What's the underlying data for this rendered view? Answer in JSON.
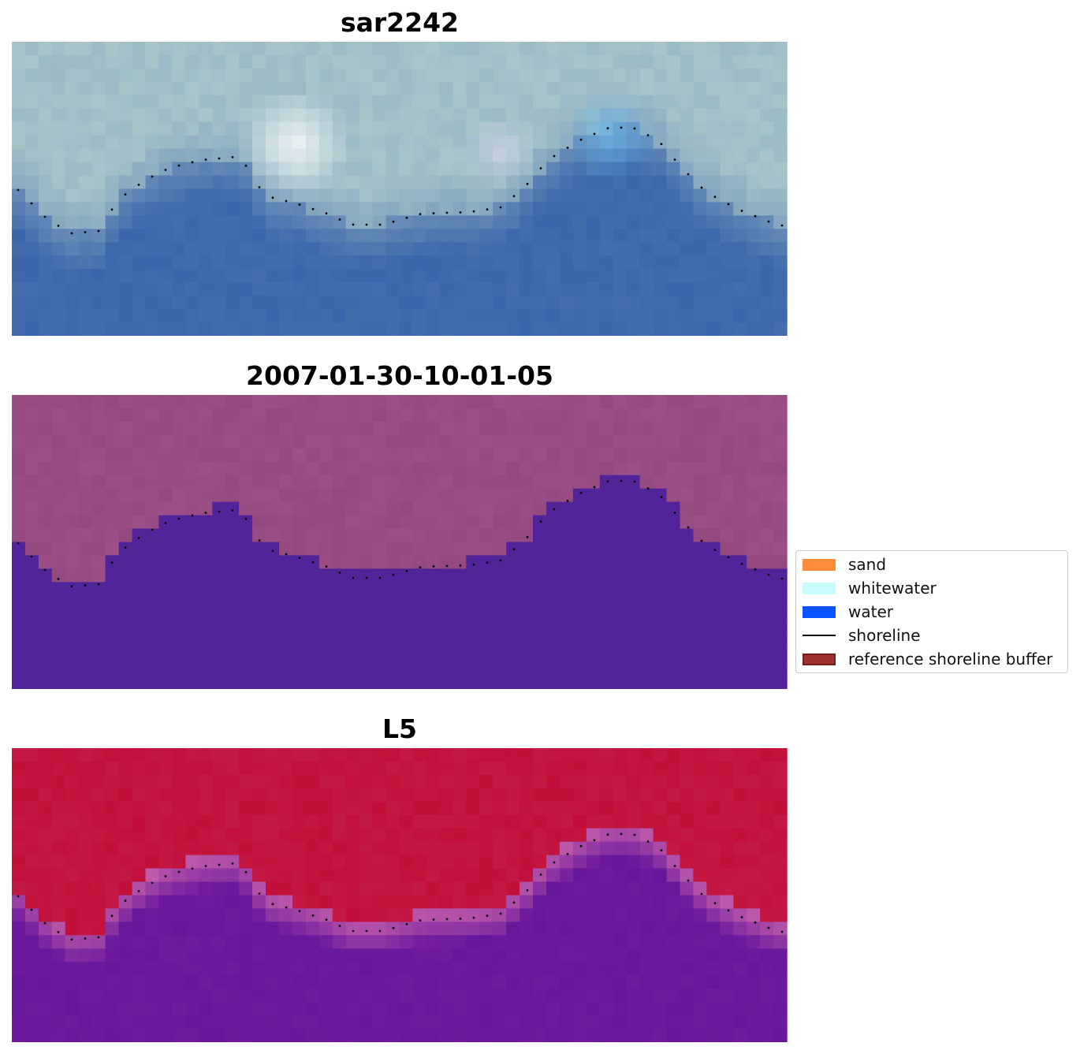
{
  "panels": [
    {
      "title": "sar2242",
      "kind": "rgb"
    },
    {
      "title": "2007-01-30-10-01-05",
      "kind": "classified"
    },
    {
      "title": "L5",
      "kind": "probability"
    }
  ],
  "legend": {
    "items": [
      {
        "label": "sand",
        "color": "#ff8c3a",
        "style": "patch"
      },
      {
        "label": "whitewater",
        "color": "#c8fbfb",
        "style": "patch"
      },
      {
        "label": "water",
        "color": "#0a55ff",
        "style": "patch"
      },
      {
        "label": "shoreline",
        "color": "#000000",
        "style": "line"
      },
      {
        "label": "reference shoreline buffer",
        "color": "#a0302e",
        "style": "patch"
      }
    ]
  },
  "colors": {
    "rgb_sky": "#a8c6c9",
    "rgb_water": "#3a66ab",
    "rgb_whitewater": "#f4f8fb",
    "classified_land": "#93497f",
    "classified_water": "#512599",
    "prob_land": "#c20f3a",
    "prob_water": "#6e1b9e",
    "shoreline_dots": "#000000"
  }
}
